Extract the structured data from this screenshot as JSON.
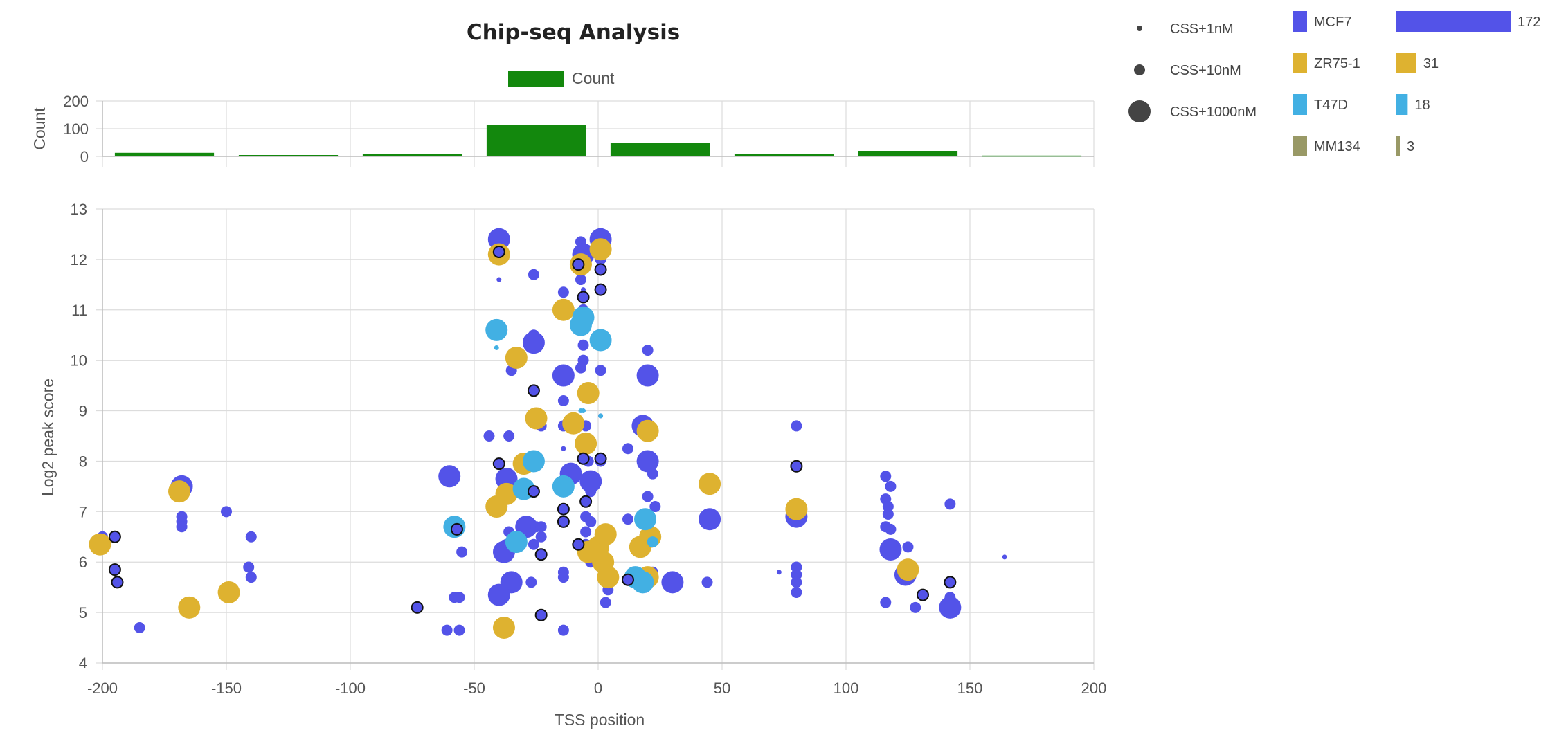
{
  "chart_data": {
    "type": "scatter",
    "title": "Chip-seq Analysis",
    "xlabel": "TSS position",
    "ylabel": "Log2 peak score",
    "xlim": [
      -200,
      200
    ],
    "ylim": [
      4,
      13
    ],
    "x_ticks": [
      "-200",
      "-150",
      "-100",
      "-50",
      "0",
      "50",
      "100",
      "150",
      "200"
    ],
    "y_ticks": [
      "4",
      "5",
      "6",
      "7",
      "8",
      "9",
      "10",
      "11",
      "12",
      "13"
    ],
    "grid": true,
    "histogram": {
      "type": "bar",
      "legend_label": "Count",
      "ylabel": "Count",
      "y_ticks": [
        "0",
        "100",
        "200"
      ],
      "ylim": [
        0,
        200
      ],
      "bin_ranges": [
        [
          -200,
          -150
        ],
        [
          -150,
          -100
        ],
        [
          -100,
          -50
        ],
        [
          -50,
          0
        ],
        [
          0,
          50
        ],
        [
          50,
          100
        ],
        [
          100,
          150
        ],
        [
          150,
          200
        ]
      ],
      "values": [
        13,
        5,
        8,
        113,
        48,
        9,
        20,
        3
      ],
      "color": "#13880d"
    },
    "size_legend": [
      {
        "label": "CSS+1nM",
        "size": "small"
      },
      {
        "label": "CSS+10nM",
        "size": "medium"
      },
      {
        "label": "CSS+1000nM",
        "size": "large"
      }
    ],
    "cell_lines": [
      {
        "name": "MCF7",
        "count": 172,
        "color": "#5353e8"
      },
      {
        "name": "ZR75-1",
        "count": 31,
        "color": "#deb230"
      },
      {
        "name": "T47D",
        "count": 18,
        "color": "#42b0e3"
      },
      {
        "name": "MM134",
        "count": 3,
        "color": "#999966"
      }
    ],
    "series": [
      {
        "name": "MCF7",
        "color": "#5353e8",
        "points": [
          [
            -200,
            6.5,
            "m"
          ],
          [
            -199,
            6.4,
            "m"
          ],
          [
            -185,
            4.7,
            "m"
          ],
          [
            -168,
            7.5,
            "l"
          ],
          [
            -168,
            6.9,
            "m"
          ],
          [
            -168,
            6.8,
            "m"
          ],
          [
            -168,
            6.7,
            "m"
          ],
          [
            -150,
            7.0,
            "m"
          ],
          [
            -140,
            6.5,
            "m"
          ],
          [
            -141,
            5.9,
            "m"
          ],
          [
            -140,
            5.7,
            "m"
          ],
          [
            -60,
            7.7,
            "l"
          ],
          [
            -58,
            6.6,
            "m"
          ],
          [
            -55,
            6.2,
            "m"
          ],
          [
            -58,
            5.3,
            "m"
          ],
          [
            -56,
            5.3,
            "m"
          ],
          [
            -61,
            4.65,
            "m"
          ],
          [
            -56,
            4.65,
            "m"
          ],
          [
            -40,
            12.4,
            "l"
          ],
          [
            -40,
            12.1,
            "m"
          ],
          [
            -40,
            11.6,
            "s"
          ],
          [
            -40,
            10.6,
            "m"
          ],
          [
            -35,
            9.8,
            "m"
          ],
          [
            -36,
            8.5,
            "m"
          ],
          [
            -44,
            8.5,
            "m"
          ],
          [
            -37,
            7.65,
            "l"
          ],
          [
            -36,
            6.6,
            "m"
          ],
          [
            -37,
            6.35,
            "m"
          ],
          [
            -38,
            6.2,
            "l"
          ],
          [
            -35,
            5.6,
            "l"
          ],
          [
            -40,
            5.35,
            "l"
          ],
          [
            -26,
            11.7,
            "m"
          ],
          [
            -26,
            10.5,
            "m"
          ],
          [
            -26,
            10.35,
            "l"
          ],
          [
            -25,
            8.9,
            "m"
          ],
          [
            -23,
            8.7,
            "m"
          ],
          [
            -29,
            6.7,
            "l"
          ],
          [
            -25,
            6.7,
            "m"
          ],
          [
            -23,
            6.7,
            "m"
          ],
          [
            -26,
            6.35,
            "m"
          ],
          [
            -23,
            6.5,
            "m"
          ],
          [
            -27,
            5.6,
            "m"
          ],
          [
            -14,
            11.35,
            "m"
          ],
          [
            -14,
            9.7,
            "l"
          ],
          [
            -14,
            9.2,
            "m"
          ],
          [
            -14,
            8.25,
            "s"
          ],
          [
            -14,
            8.7,
            "m"
          ],
          [
            -11,
            7.75,
            "l"
          ],
          [
            -14,
            7.6,
            "m"
          ],
          [
            -14,
            5.8,
            "m"
          ],
          [
            -14,
            5.7,
            "m"
          ],
          [
            -14,
            4.65,
            "m"
          ],
          [
            -7,
            12.35,
            "m"
          ],
          [
            -6,
            12.1,
            "l"
          ],
          [
            -7,
            11.85,
            "m"
          ],
          [
            -7,
            11.6,
            "m"
          ],
          [
            -6,
            11.4,
            "s"
          ],
          [
            -6,
            11.0,
            "m"
          ],
          [
            -6,
            10.3,
            "m"
          ],
          [
            -6,
            10.0,
            "m"
          ],
          [
            -7,
            9.85,
            "m"
          ],
          [
            -5,
            8.7,
            "m"
          ],
          [
            -4,
            8.0,
            "m"
          ],
          [
            -3,
            7.6,
            "l"
          ],
          [
            -3,
            7.4,
            "m"
          ],
          [
            -5,
            6.9,
            "m"
          ],
          [
            -3,
            6.8,
            "m"
          ],
          [
            -5,
            6.6,
            "m"
          ],
          [
            -5,
            6.35,
            "m"
          ],
          [
            -3,
            6.0,
            "m"
          ],
          [
            1,
            12.4,
            "l"
          ],
          [
            1,
            12.0,
            "m"
          ],
          [
            1,
            11.8,
            "m"
          ],
          [
            1,
            9.8,
            "m"
          ],
          [
            1,
            8.9,
            "s"
          ],
          [
            1,
            8.0,
            "m"
          ],
          [
            4,
            5.45,
            "m"
          ],
          [
            3,
            5.2,
            "m"
          ],
          [
            12,
            8.25,
            "m"
          ],
          [
            12,
            6.85,
            "m"
          ],
          [
            16,
            5.6,
            "m"
          ],
          [
            19,
            5.5,
            "m"
          ],
          [
            22,
            5.8,
            "m"
          ],
          [
            20,
            10.2,
            "m"
          ],
          [
            20,
            9.7,
            "l"
          ],
          [
            18,
            8.7,
            "l"
          ],
          [
            20,
            8.0,
            "l"
          ],
          [
            22,
            7.75,
            "m"
          ],
          [
            20,
            7.3,
            "m"
          ],
          [
            23,
            7.1,
            "m"
          ],
          [
            21,
            6.4,
            "s"
          ],
          [
            30,
            5.6,
            "l"
          ],
          [
            45,
            6.85,
            "l"
          ],
          [
            44,
            5.6,
            "m"
          ],
          [
            73,
            5.8,
            "s"
          ],
          [
            80,
            8.7,
            "m"
          ],
          [
            80,
            6.9,
            "l"
          ],
          [
            80,
            5.9,
            "m"
          ],
          [
            80,
            5.75,
            "m"
          ],
          [
            80,
            5.6,
            "m"
          ],
          [
            80,
            5.4,
            "m"
          ],
          [
            116,
            7.7,
            "m"
          ],
          [
            118,
            7.5,
            "m"
          ],
          [
            116,
            7.25,
            "m"
          ],
          [
            117,
            7.1,
            "m"
          ],
          [
            117,
            6.95,
            "m"
          ],
          [
            116,
            6.7,
            "m"
          ],
          [
            118,
            6.65,
            "m"
          ],
          [
            118,
            6.25,
            "l"
          ],
          [
            125,
            6.3,
            "m"
          ],
          [
            124,
            5.75,
            "l"
          ],
          [
            116,
            5.2,
            "m"
          ],
          [
            128,
            5.1,
            "m"
          ],
          [
            142,
            7.15,
            "m"
          ],
          [
            142,
            5.3,
            "m"
          ],
          [
            142,
            5.1,
            "l"
          ],
          [
            164,
            6.1,
            "s"
          ]
        ]
      },
      {
        "name": "ZR75-1",
        "color": "#deb230",
        "points": [
          [
            -201,
            6.35,
            "l"
          ],
          [
            -169,
            7.4,
            "l"
          ],
          [
            -165,
            5.1,
            "l"
          ],
          [
            -149,
            5.4,
            "l"
          ],
          [
            -40,
            12.1,
            "l"
          ],
          [
            -33,
            10.05,
            "l"
          ],
          [
            -25,
            8.85,
            "l"
          ],
          [
            -30,
            7.95,
            "l"
          ],
          [
            -37,
            7.35,
            "l"
          ],
          [
            -41,
            7.1,
            "l"
          ],
          [
            -38,
            4.7,
            "l"
          ],
          [
            -14,
            11.0,
            "l"
          ],
          [
            -10,
            8.75,
            "l"
          ],
          [
            -7,
            11.9,
            "l"
          ],
          [
            -4,
            9.35,
            "l"
          ],
          [
            -5,
            8.35,
            "l"
          ],
          [
            -4,
            6.2,
            "l"
          ],
          [
            0,
            6.3,
            "l"
          ],
          [
            3,
            6.55,
            "l"
          ],
          [
            2,
            6.0,
            "l"
          ],
          [
            4,
            5.7,
            "l"
          ],
          [
            1,
            12.2,
            "l"
          ],
          [
            20,
            8.6,
            "l"
          ],
          [
            17,
            6.3,
            "l"
          ],
          [
            21,
            6.5,
            "l"
          ],
          [
            20,
            5.7,
            "l"
          ],
          [
            45,
            7.55,
            "l"
          ],
          [
            80,
            7.05,
            "l"
          ],
          [
            125,
            5.85,
            "l"
          ]
        ]
      },
      {
        "name": "T47D",
        "color": "#42b0e3",
        "points": [
          [
            -41,
            10.6,
            "l"
          ],
          [
            -41,
            10.25,
            "s"
          ],
          [
            -58,
            6.7,
            "l"
          ],
          [
            -26,
            8.0,
            "l"
          ],
          [
            -30,
            7.45,
            "l"
          ],
          [
            -33,
            6.4,
            "l"
          ],
          [
            -14,
            7.5,
            "l"
          ],
          [
            -7,
            10.7,
            "l"
          ],
          [
            -6,
            10.85,
            "l"
          ],
          [
            1,
            10.4,
            "l"
          ],
          [
            -7,
            9.0,
            "s"
          ],
          [
            -6,
            9.0,
            "s"
          ],
          [
            1,
            8.9,
            "s"
          ],
          [
            19,
            6.85,
            "l"
          ],
          [
            20,
            6.7,
            "s"
          ],
          [
            22,
            6.4,
            "m"
          ],
          [
            15,
            5.7,
            "l"
          ],
          [
            18,
            5.6,
            "l"
          ]
        ]
      },
      {
        "name": "CSS+10nM",
        "color": "#5353e8",
        "outline": "#111111",
        "points": [
          [
            -195,
            6.5,
            "m"
          ],
          [
            -195,
            5.85,
            "m"
          ],
          [
            -194,
            5.6,
            "m"
          ],
          [
            -73,
            5.1,
            "m"
          ],
          [
            -57,
            6.65,
            "m"
          ],
          [
            -40,
            12.15,
            "m"
          ],
          [
            -40,
            7.95,
            "m"
          ],
          [
            -26,
            9.4,
            "m"
          ],
          [
            -26,
            7.4,
            "m"
          ],
          [
            -23,
            6.15,
            "m"
          ],
          [
            -23,
            4.95,
            "m"
          ],
          [
            -14,
            7.05,
            "m"
          ],
          [
            -14,
            6.8,
            "m"
          ],
          [
            -8,
            11.9,
            "m"
          ],
          [
            -6,
            11.25,
            "m"
          ],
          [
            -5,
            7.2,
            "m"
          ],
          [
            -8,
            6.35,
            "m"
          ],
          [
            -6,
            8.05,
            "m"
          ],
          [
            1,
            11.8,
            "m"
          ],
          [
            1,
            11.4,
            "m"
          ],
          [
            1,
            8.05,
            "m"
          ],
          [
            12,
            5.65,
            "m"
          ],
          [
            80,
            7.9,
            "m"
          ],
          [
            131,
            5.35,
            "m"
          ],
          [
            142,
            5.6,
            "m"
          ]
        ]
      }
    ]
  }
}
